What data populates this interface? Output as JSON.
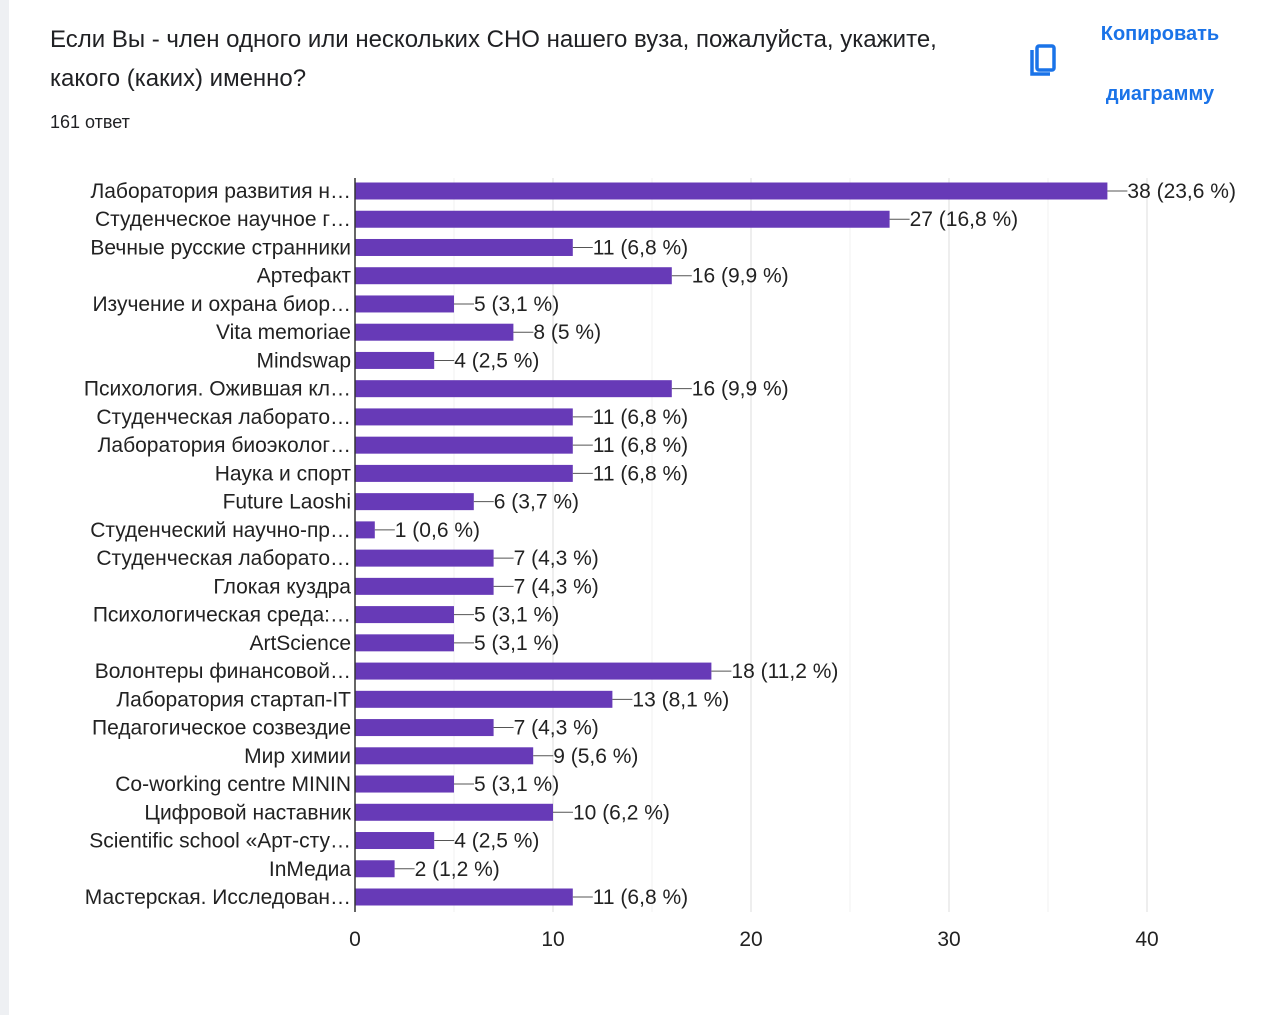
{
  "question": {
    "title": "Если Вы - член одного или нескольких СНО нашего вуза, пожалуйста, укажите, какого (каких) именно?",
    "responses": "161 ответ"
  },
  "copy_button": {
    "label": "Копировать диаграмму",
    "icon": "copy-icon"
  },
  "colors": {
    "bar": "#673ab7",
    "accent": "#1a73e8"
  },
  "chart_data": {
    "type": "bar",
    "orientation": "horizontal",
    "categories": [
      "Лаборатория развития н…",
      "Студенческое научное г…",
      "Вечные русские странники",
      "Артефакт",
      "Изучение и охрана биор…",
      "Vita memoriae",
      "Mindswap",
      "Психология. Ожившая кл…",
      "Студенческая лаборато…",
      "Лаборатория биоэколог…",
      "Наука и спорт",
      "Future Laoshi",
      "Студенческий научно-пр…",
      "Студенческая лаборато…",
      "Глокая куздра",
      "Психологическая среда:…",
      "ArtScience",
      "Волонтеры финансовой…",
      "Лаборатория стартап-IT",
      "Педагогическое созвездие",
      "Мир химии",
      "Co-working centre MININ",
      "Цифровой наставник",
      "Scientific school «Арт-сту…",
      "InМедиа",
      "Мастерская. Исследован…"
    ],
    "values": [
      38,
      27,
      11,
      16,
      5,
      8,
      4,
      16,
      11,
      11,
      11,
      6,
      1,
      7,
      7,
      5,
      5,
      18,
      13,
      7,
      9,
      5,
      10,
      4,
      2,
      11
    ],
    "data_labels": [
      "38 (23,6 %)",
      "27 (16,8 %)",
      "11 (6,8 %)",
      "16 (9,9 %)",
      "5 (3,1 %)",
      "8 (5 %)",
      "4 (2,5 %)",
      "16 (9,9 %)",
      "11 (6,8 %)",
      "11 (6,8 %)",
      "11 (6,8 %)",
      "6 (3,7 %)",
      "1 (0,6 %)",
      "7 (4,3 %)",
      "7 (4,3 %)",
      "5 (3,1 %)",
      "5 (3,1 %)",
      "18 (11,2 %)",
      "13 (8,1 %)",
      "7 (4,3 %)",
      "9 (5,6 %)",
      "5 (3,1 %)",
      "10 (6,2 %)",
      "4 (2,5 %)",
      "2 (1,2 %)",
      "11 (6,8 %)"
    ],
    "xlim": [
      0,
      40
    ],
    "xticks": [
      "0",
      "10",
      "20",
      "30",
      "40"
    ],
    "grid": true
  }
}
